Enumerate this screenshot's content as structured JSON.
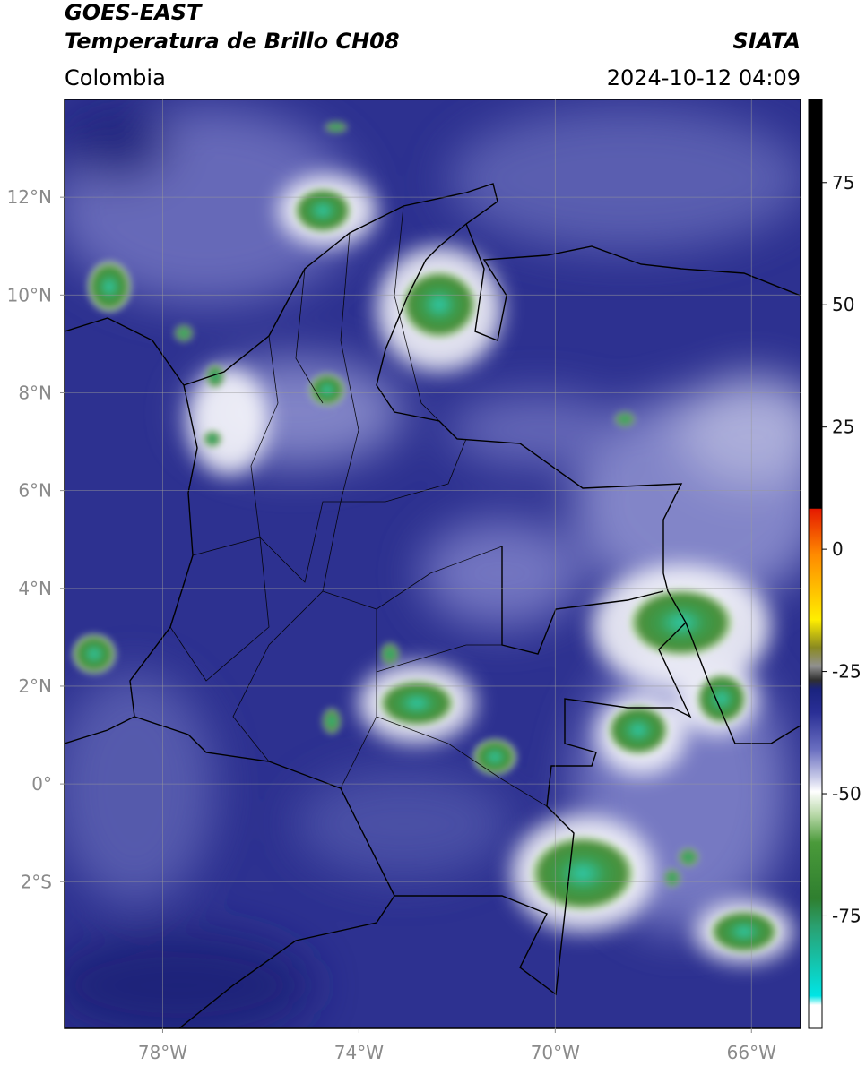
{
  "header": {
    "title": "GOES-EAST",
    "subtitle": "Temperatura de Brillo CH08",
    "region": "Colombia",
    "source": "SIATA",
    "timestamp": "2024-10-12 04:09"
  },
  "map": {
    "type": "map",
    "xlim": [
      -80,
      -65
    ],
    "ylim": [
      -5,
      14
    ],
    "xticks": [
      {
        "value": -78,
        "label": "78°W"
      },
      {
        "value": -74,
        "label": "74°W"
      },
      {
        "value": -70,
        "label": "70°W"
      },
      {
        "value": -66,
        "label": "66°W"
      }
    ],
    "yticks": [
      {
        "value": 12,
        "label": "12°N"
      },
      {
        "value": 10,
        "label": "10°N"
      },
      {
        "value": 8,
        "label": "8°N"
      },
      {
        "value": 6,
        "label": "6°N"
      },
      {
        "value": 4,
        "label": "4°N"
      },
      {
        "value": 2,
        "label": "2°N"
      },
      {
        "value": 0,
        "label": "0°"
      },
      {
        "value": -2,
        "label": "2°S"
      }
    ],
    "grid": true
  },
  "colorbar": {
    "clim": [
      -98,
      92
    ],
    "ticks": [
      75,
      50,
      25,
      0,
      -25,
      -50,
      -75
    ]
  }
}
